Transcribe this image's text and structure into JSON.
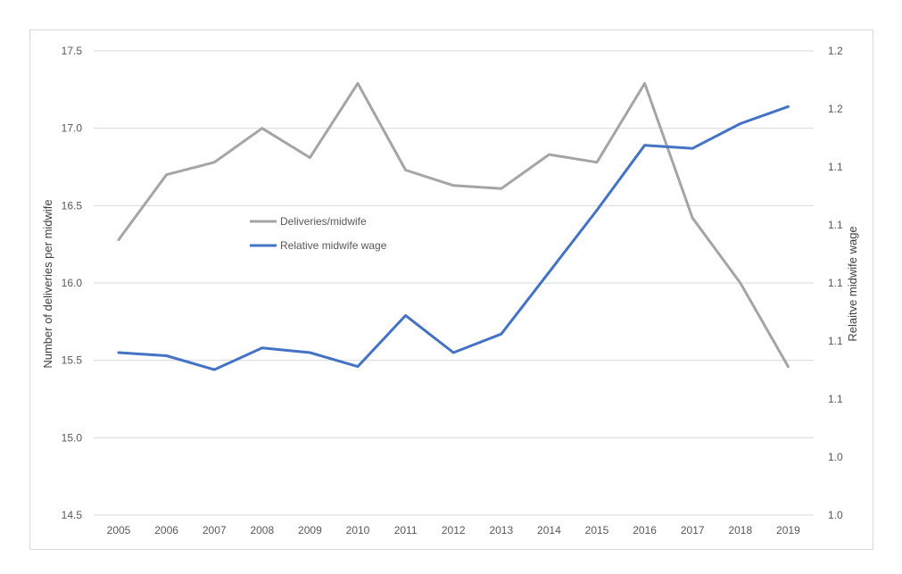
{
  "chart_data": {
    "type": "line",
    "categories": [
      "2005",
      "2006",
      "2007",
      "2008",
      "2009",
      "2010",
      "2011",
      "2012",
      "2013",
      "2014",
      "2015",
      "2016",
      "2017",
      "2018",
      "2019"
    ],
    "series": [
      {
        "name": "Deliveries/midwife",
        "axis": "left",
        "color": "#a5a5a5",
        "values": [
          16.28,
          16.7,
          16.78,
          17.0,
          16.81,
          17.29,
          16.73,
          16.63,
          16.61,
          16.83,
          16.78,
          17.29,
          16.42,
          16.0,
          15.46
        ]
      },
      {
        "name": "Relative midwife wage",
        "axis": "right",
        "color": "#4472c4",
        "values": [
          1.08,
          1.078,
          1.069,
          1.083,
          1.08,
          1.071,
          1.104,
          1.08,
          1.092,
          1.132,
          1.172,
          1.214,
          1.212,
          1.228,
          1.239
        ]
      }
    ],
    "y_left": {
      "label": "Number of deliveries per midwife",
      "ylim": [
        14.5,
        17.5
      ],
      "ticks": [
        "14.5",
        "15.0",
        "15.5",
        "16.0",
        "16.5",
        "17.0",
        "17.5"
      ]
    },
    "y_right": {
      "label": "Relaitve midwife wage",
      "ylim": [
        0.975,
        1.275
      ],
      "ticks": [
        "1.0",
        "1.0",
        "1.1",
        "1.1",
        "1.1",
        "1.1",
        "1.1",
        "1.2",
        "1.2"
      ]
    },
    "grid": true,
    "legend": "center-left"
  }
}
